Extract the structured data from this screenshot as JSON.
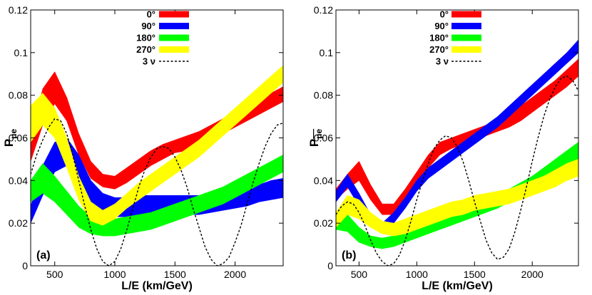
{
  "chart_data": [
    {
      "type": "area",
      "panel_label": "(a)",
      "xlabel": "L/E (km/GeV)",
      "ylabel": "P",
      "ylabel_sub": "μe",
      "xlim": [
        300,
        2400
      ],
      "ylim": [
        0,
        0.12
      ],
      "xticks": [
        500,
        1000,
        1500,
        2000
      ],
      "yticks": [
        0,
        0.02,
        0.04,
        0.06,
        0.08,
        0.1,
        0.12
      ],
      "ytick_labels": [
        "0",
        "0.02",
        "0.04",
        "0.06",
        "0.08",
        "0.1",
        "0.12"
      ],
      "grid": false,
      "legend_position": "top-center",
      "series": [
        {
          "name": "0°",
          "color": "#ff0000",
          "x": [
            300,
            400,
            500,
            600,
            700,
            800,
            900,
            1000,
            1100,
            1200,
            1300,
            1400,
            1500,
            1600,
            1700,
            1800,
            1900,
            2000,
            2100,
            2200,
            2300,
            2400
          ],
          "upper": [
            0.06,
            0.083,
            0.091,
            0.079,
            0.062,
            0.049,
            0.043,
            0.042,
            0.046,
            0.05,
            0.054,
            0.057,
            0.059,
            0.061,
            0.063,
            0.066,
            0.069,
            0.072,
            0.075,
            0.078,
            0.081,
            0.084
          ],
          "lower": [
            0.049,
            0.066,
            0.076,
            0.068,
            0.052,
            0.041,
            0.037,
            0.036,
            0.039,
            0.043,
            0.047,
            0.05,
            0.053,
            0.054,
            0.056,
            0.059,
            0.062,
            0.065,
            0.068,
            0.071,
            0.074,
            0.077
          ]
        },
        {
          "name": "90°",
          "color": "#0000ff",
          "x": [
            300,
            400,
            500,
            600,
            700,
            800,
            900,
            1000,
            1100,
            1200,
            1300,
            1400,
            1500,
            1600,
            1700,
            1800,
            1900,
            2000,
            2100,
            2200,
            2300,
            2400
          ],
          "upper": [
            0.028,
            0.047,
            0.058,
            0.06,
            0.052,
            0.04,
            0.034,
            0.032,
            0.032,
            0.033,
            0.033,
            0.033,
            0.033,
            0.033,
            0.033,
            0.034,
            0.035,
            0.036,
            0.037,
            0.038,
            0.04,
            0.041
          ],
          "lower": [
            0.02,
            0.033,
            0.044,
            0.047,
            0.041,
            0.03,
            0.025,
            0.023,
            0.023,
            0.024,
            0.024,
            0.024,
            0.024,
            0.024,
            0.024,
            0.025,
            0.026,
            0.027,
            0.028,
            0.03,
            0.031,
            0.032
          ]
        },
        {
          "name": "180°",
          "color": "#00ff00",
          "x": [
            300,
            400,
            500,
            600,
            700,
            800,
            900,
            1000,
            1100,
            1200,
            1300,
            1400,
            1500,
            1600,
            1700,
            1800,
            1900,
            2000,
            2100,
            2200,
            2300,
            2400
          ],
          "upper": [
            0.04,
            0.048,
            0.042,
            0.035,
            0.028,
            0.023,
            0.022,
            0.022,
            0.023,
            0.024,
            0.025,
            0.027,
            0.029,
            0.031,
            0.033,
            0.035,
            0.037,
            0.04,
            0.043,
            0.046,
            0.049,
            0.052
          ],
          "lower": [
            0.03,
            0.034,
            0.03,
            0.024,
            0.018,
            0.015,
            0.014,
            0.014,
            0.015,
            0.016,
            0.017,
            0.019,
            0.021,
            0.023,
            0.025,
            0.027,
            0.029,
            0.032,
            0.035,
            0.038,
            0.041,
            0.044
          ]
        },
        {
          "name": "270°",
          "color": "#ffff00",
          "x": [
            300,
            400,
            500,
            600,
            700,
            800,
            900,
            1000,
            1100,
            1200,
            1300,
            1400,
            1500,
            1600,
            1700,
            1800,
            1900,
            2000,
            2100,
            2200,
            2300,
            2400
          ],
          "upper": [
            0.075,
            0.081,
            0.074,
            0.06,
            0.042,
            0.03,
            0.026,
            0.029,
            0.034,
            0.039,
            0.043,
            0.047,
            0.051,
            0.055,
            0.059,
            0.064,
            0.069,
            0.074,
            0.079,
            0.084,
            0.089,
            0.094
          ],
          "lower": [
            0.058,
            0.066,
            0.06,
            0.046,
            0.031,
            0.021,
            0.019,
            0.022,
            0.027,
            0.031,
            0.035,
            0.039,
            0.043,
            0.047,
            0.051,
            0.056,
            0.061,
            0.066,
            0.071,
            0.076,
            0.081,
            0.086
          ]
        },
        {
          "name": "3 ν",
          "color": "#000000",
          "style": "dashed",
          "x": [
            300,
            350,
            400,
            450,
            500,
            550,
            600,
            650,
            700,
            750,
            800,
            850,
            900,
            950,
            1000,
            1050,
            1100,
            1150,
            1200,
            1250,
            1300,
            1350,
            1400,
            1450,
            1500,
            1550,
            1600,
            1650,
            1700,
            1750,
            1800,
            1850,
            1900,
            1950,
            2000,
            2050,
            2100,
            2150,
            2200,
            2250,
            2300,
            2350,
            2400
          ],
          "y": [
            0.043,
            0.052,
            0.059,
            0.065,
            0.069,
            0.068,
            0.062,
            0.052,
            0.04,
            0.028,
            0.017,
            0.008,
            0.002,
            0.0,
            0.002,
            0.008,
            0.017,
            0.027,
            0.037,
            0.045,
            0.051,
            0.055,
            0.056,
            0.055,
            0.051,
            0.045,
            0.037,
            0.027,
            0.018,
            0.009,
            0.003,
            0.0,
            0.001,
            0.004,
            0.011,
            0.019,
            0.029,
            0.039,
            0.048,
            0.056,
            0.062,
            0.066,
            0.067
          ]
        }
      ]
    },
    {
      "type": "area",
      "panel_label": "(b)",
      "xlabel": "L/E (km/GeV)",
      "ylabel": "P",
      "ylabel_sub": "μe",
      "ylabel_overbar": true,
      "xlim": [
        300,
        2400
      ],
      "ylim": [
        0,
        0.12
      ],
      "xticks": [
        500,
        1000,
        1500,
        2000
      ],
      "yticks": [
        0,
        0.02,
        0.04,
        0.06,
        0.08,
        0.1,
        0.12
      ],
      "ytick_labels": [
        "0",
        "0.02",
        "0.04",
        "0.06",
        "0.08",
        "0.1",
        "0.12"
      ],
      "grid": false,
      "legend_position": "top-center",
      "series": [
        {
          "name": "0°",
          "color": "#ff0000",
          "x": [
            300,
            400,
            500,
            600,
            700,
            800,
            900,
            1000,
            1100,
            1200,
            1300,
            1400,
            1500,
            1600,
            1700,
            1800,
            1900,
            2000,
            2100,
            2200,
            2300,
            2400
          ],
          "upper": [
            0.036,
            0.043,
            0.049,
            0.038,
            0.029,
            0.029,
            0.036,
            0.044,
            0.052,
            0.058,
            0.06,
            0.062,
            0.064,
            0.066,
            0.068,
            0.071,
            0.075,
            0.079,
            0.083,
            0.087,
            0.092,
            0.097
          ],
          "lower": [
            0.031,
            0.036,
            0.04,
            0.031,
            0.024,
            0.024,
            0.03,
            0.038,
            0.046,
            0.052,
            0.055,
            0.057,
            0.059,
            0.061,
            0.063,
            0.065,
            0.068,
            0.072,
            0.076,
            0.08,
            0.084,
            0.089
          ]
        },
        {
          "name": "90°",
          "color": "#0000ff",
          "x": [
            300,
            400,
            500,
            600,
            700,
            800,
            900,
            1000,
            1100,
            1200,
            1300,
            1400,
            1500,
            1600,
            1700,
            1800,
            1900,
            2000,
            2100,
            2200,
            2300,
            2400
          ],
          "upper": [
            0.035,
            0.043,
            0.034,
            0.024,
            0.02,
            0.025,
            0.032,
            0.04,
            0.046,
            0.05,
            0.054,
            0.058,
            0.062,
            0.066,
            0.07,
            0.075,
            0.08,
            0.085,
            0.09,
            0.095,
            0.1,
            0.106
          ],
          "lower": [
            0.03,
            0.037,
            0.028,
            0.019,
            0.016,
            0.02,
            0.027,
            0.035,
            0.041,
            0.045,
            0.049,
            0.053,
            0.057,
            0.061,
            0.065,
            0.07,
            0.075,
            0.08,
            0.085,
            0.09,
            0.095,
            0.1
          ]
        },
        {
          "name": "180°",
          "color": "#00ff00",
          "x": [
            300,
            400,
            500,
            600,
            700,
            800,
            900,
            1000,
            1100,
            1200,
            1300,
            1400,
            1500,
            1600,
            1700,
            1800,
            1900,
            2000,
            2100,
            2200,
            2300,
            2400
          ],
          "upper": [
            0.024,
            0.024,
            0.018,
            0.014,
            0.013,
            0.014,
            0.016,
            0.018,
            0.02,
            0.022,
            0.024,
            0.026,
            0.028,
            0.03,
            0.033,
            0.036,
            0.039,
            0.042,
            0.046,
            0.05,
            0.054,
            0.058
          ],
          "lower": [
            0.017,
            0.016,
            0.011,
            0.009,
            0.008,
            0.009,
            0.011,
            0.013,
            0.015,
            0.017,
            0.019,
            0.021,
            0.023,
            0.025,
            0.027,
            0.03,
            0.033,
            0.036,
            0.039,
            0.043,
            0.046,
            0.05
          ]
        },
        {
          "name": "270°",
          "color": "#ffff00",
          "x": [
            300,
            400,
            500,
            600,
            700,
            800,
            900,
            1000,
            1100,
            1200,
            1300,
            1400,
            1500,
            1600,
            1700,
            1800,
            1900,
            2000,
            2100,
            2200,
            2300,
            2400
          ],
          "upper": [
            0.025,
            0.033,
            0.031,
            0.025,
            0.021,
            0.02,
            0.022,
            0.024,
            0.026,
            0.028,
            0.03,
            0.031,
            0.033,
            0.034,
            0.035,
            0.036,
            0.038,
            0.04,
            0.042,
            0.045,
            0.048,
            0.05
          ],
          "lower": [
            0.018,
            0.024,
            0.022,
            0.018,
            0.015,
            0.014,
            0.015,
            0.017,
            0.019,
            0.021,
            0.023,
            0.024,
            0.026,
            0.027,
            0.028,
            0.029,
            0.031,
            0.033,
            0.035,
            0.037,
            0.04,
            0.042
          ]
        },
        {
          "name": "3 ν",
          "color": "#000000",
          "style": "dashed",
          "x": [
            300,
            350,
            400,
            450,
            500,
            550,
            600,
            650,
            700,
            750,
            800,
            850,
            900,
            950,
            1000,
            1050,
            1100,
            1150,
            1200,
            1250,
            1300,
            1350,
            1400,
            1450,
            1500,
            1550,
            1600,
            1650,
            1700,
            1750,
            1800,
            1850,
            1900,
            1950,
            2000,
            2050,
            2100,
            2150,
            2200,
            2250,
            2300,
            2350,
            2400
          ],
          "y": [
            0.024,
            0.028,
            0.03,
            0.029,
            0.025,
            0.019,
            0.012,
            0.006,
            0.002,
            0.0,
            0.001,
            0.005,
            0.012,
            0.021,
            0.031,
            0.04,
            0.048,
            0.055,
            0.059,
            0.061,
            0.06,
            0.056,
            0.049,
            0.04,
            0.03,
            0.021,
            0.012,
            0.006,
            0.003,
            0.004,
            0.008,
            0.016,
            0.026,
            0.037,
            0.049,
            0.06,
            0.07,
            0.078,
            0.084,
            0.088,
            0.089,
            0.087,
            0.082
          ]
        }
      ]
    }
  ]
}
